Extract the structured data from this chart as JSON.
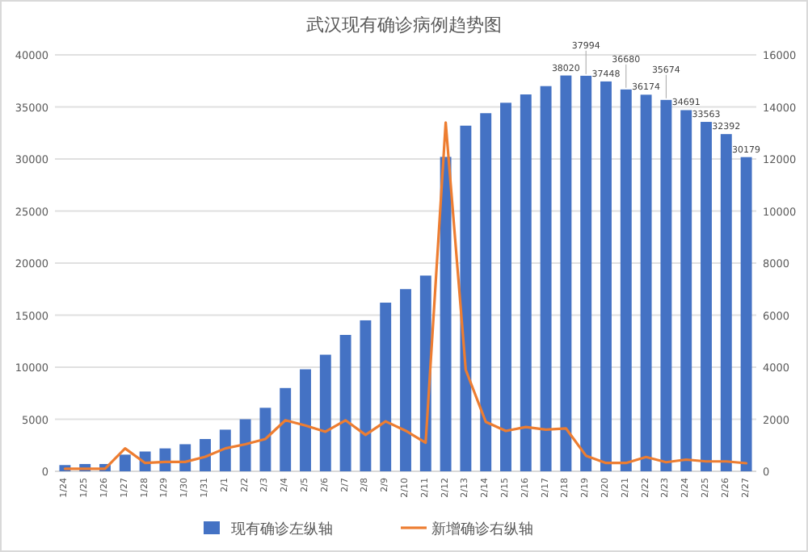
{
  "chart_data": {
    "type": "bar",
    "title": "武汉现有确诊病例趋势图",
    "categories": [
      "1/24",
      "1/25",
      "1/26",
      "1/27",
      "1/28",
      "1/29",
      "1/30",
      "1/31",
      "2/1",
      "2/2",
      "2/3",
      "2/4",
      "2/5",
      "2/6",
      "2/7",
      "2/8",
      "2/9",
      "2/10",
      "2/11",
      "2/12",
      "2/13",
      "2/14",
      "2/15",
      "2/16",
      "2/17",
      "2/18",
      "2/19",
      "2/20",
      "2/21",
      "2/22",
      "2/23",
      "2/24",
      "2/25",
      "2/26",
      "2/27"
    ],
    "series": [
      {
        "name": "现有确诊左纵轴",
        "color": "#4472c4",
        "values": [
          600,
          700,
          700,
          1600,
          1900,
          2200,
          2600,
          3100,
          4000,
          5000,
          6100,
          8000,
          9800,
          11200,
          13100,
          14500,
          16200,
          17500,
          18800,
          30200,
          33200,
          34400,
          35400,
          36200,
          37000,
          38020,
          37994,
          37448,
          36680,
          36174,
          35674,
          34691,
          33563,
          32392,
          30179
        ],
        "value_labels": [
          null,
          null,
          null,
          null,
          null,
          null,
          null,
          null,
          null,
          null,
          null,
          null,
          null,
          null,
          null,
          null,
          null,
          null,
          null,
          null,
          null,
          null,
          null,
          null,
          null,
          "38020",
          "37994",
          "37448",
          "36680",
          "36174",
          "35674",
          "34691",
          "33563",
          "32392",
          "30179"
        ]
      },
      {
        "name": "新增确诊右纵轴",
        "type": "line",
        "axis": "y2",
        "color": "#ed7d31",
        "values": [
          100,
          100,
          100,
          880,
          320,
          360,
          360,
          560,
          880,
          1040,
          1240,
          1960,
          1760,
          1520,
          1960,
          1400,
          1920,
          1560,
          1100,
          13400,
          3900,
          1900,
          1550,
          1700,
          1600,
          1650,
          600,
          320,
          320,
          550,
          350,
          450,
          380,
          380,
          310
        ]
      }
    ],
    "ylim": [
      0,
      40000
    ],
    "yticks": [
      0,
      5000,
      10000,
      15000,
      20000,
      25000,
      30000,
      35000,
      40000
    ],
    "y2lim": [
      0,
      16000
    ],
    "y2ticks": [
      0,
      2000,
      4000,
      6000,
      8000,
      10000,
      12000,
      14000,
      16000
    ],
    "grid": "y",
    "legend": "bottom",
    "marker": "none",
    "line_style": "solid"
  }
}
